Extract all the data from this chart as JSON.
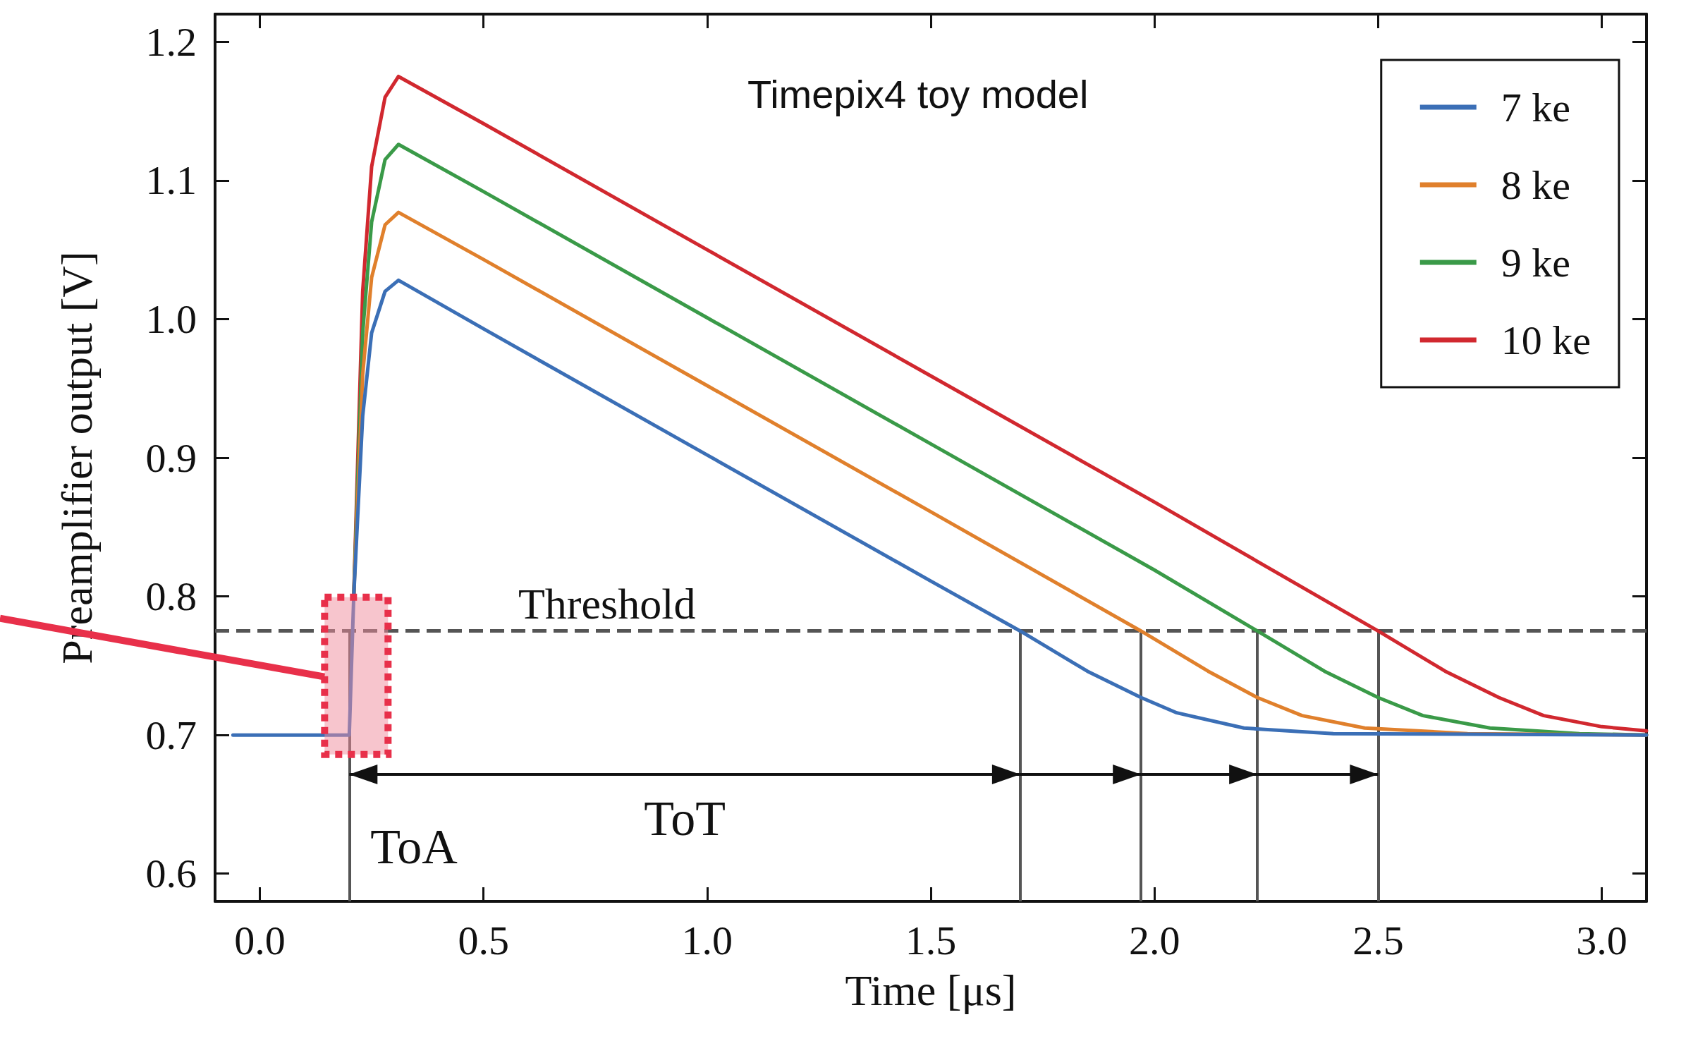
{
  "chart_data": {
    "type": "line",
    "xlabel": "Time [μs]",
    "ylabel": "Preamplifier output [V]",
    "xlim": [
      -0.1,
      3.1
    ],
    "xticks": [
      {
        "value": 0,
        "label": "0.0"
      },
      0.5,
      {
        "value": 1,
        "label": "1.0"
      },
      1.5,
      {
        "value": 2,
        "label": "2.0"
      },
      2.5,
      {
        "value": 3,
        "label": "3.0"
      }
    ],
    "ylim": [
      0.58,
      1.22
    ],
    "yticks": [
      0.6,
      0.7,
      0.8,
      0.9,
      {
        "value": 1,
        "label": "1.0"
      },
      1.1,
      1.2
    ],
    "grid": false,
    "legend": "top right",
    "marker": "none",
    "line_style": "solid",
    "series": [
      {
        "name": "7 ke",
        "color": "#3b6fb6",
        "x": [
          -0.06,
          0.2,
          0.21,
          0.23,
          0.25,
          0.28,
          0.31,
          0.5,
          1.0,
          1.5,
          1.7,
          1.85,
          1.97,
          2.05,
          2.2,
          2.4,
          3.1
        ],
        "values": [
          0.7,
          0.7,
          0.8,
          0.93,
          0.99,
          1.02,
          1.028,
          0.993,
          0.902,
          0.811,
          0.775,
          0.746,
          0.727,
          0.716,
          0.705,
          0.701,
          0.7
        ]
      },
      {
        "name": "8 ke",
        "color": "#e0802c",
        "x": [
          0.21,
          0.23,
          0.25,
          0.28,
          0.31,
          0.5,
          1.0,
          1.5,
          1.97,
          2.12,
          2.23,
          2.33,
          2.47,
          2.7,
          3.1
        ],
        "values": [
          0.8,
          0.96,
          1.03,
          1.068,
          1.077,
          1.043,
          0.952,
          0.861,
          0.775,
          0.746,
          0.727,
          0.714,
          0.705,
          0.701,
          0.7
        ]
      },
      {
        "name": "9 ke",
        "color": "#3a9a48",
        "x": [
          0.21,
          0.23,
          0.25,
          0.28,
          0.31,
          0.5,
          1.0,
          1.5,
          2.0,
          2.23,
          2.38,
          2.5,
          2.6,
          2.75,
          2.95,
          3.1
        ],
        "values": [
          0.8,
          0.99,
          1.07,
          1.115,
          1.126,
          1.092,
          1.001,
          0.91,
          0.819,
          0.775,
          0.746,
          0.727,
          0.714,
          0.705,
          0.701,
          0.7
        ]
      },
      {
        "name": "10 ke",
        "color": "#d1282f",
        "x": [
          0.21,
          0.23,
          0.25,
          0.28,
          0.31,
          0.5,
          1.0,
          1.5,
          2.0,
          2.5,
          2.65,
          2.77,
          2.87,
          3.0,
          3.1
        ],
        "values": [
          0.8,
          1.02,
          1.11,
          1.16,
          1.175,
          1.141,
          1.05,
          0.959,
          0.868,
          0.775,
          0.746,
          0.727,
          0.714,
          0.706,
          0.703
        ]
      }
    ],
    "ref_lines": [
      {
        "axis": "y",
        "value": 0.775,
        "label": "Threshold",
        "color": "#555555",
        "line_style": "dashed"
      },
      {
        "axis": "x",
        "value": 0.2,
        "label": null,
        "color": "#555555",
        "line_style": "solid"
      },
      {
        "axis": "x",
        "value": 1.7,
        "label": null,
        "color": "#555555",
        "line_style": "solid"
      },
      {
        "axis": "x",
        "value": 1.97,
        "label": null,
        "color": "#555555",
        "line_style": "solid"
      },
      {
        "axis": "x",
        "value": 2.23,
        "label": null,
        "color": "#555555",
        "line_style": "solid"
      },
      {
        "axis": "x",
        "value": 2.5,
        "label": null,
        "color": "#555555",
        "line_style": "solid"
      }
    ],
    "annotations": [
      "Timepix4 toy model",
      "ToA",
      "ToT"
    ]
  }
}
